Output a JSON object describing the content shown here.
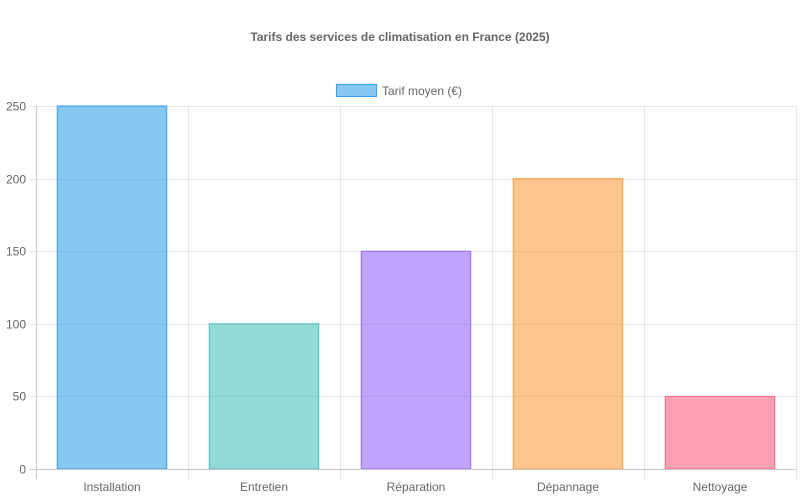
{
  "chart_data": {
    "type": "bar",
    "title": "Tarifs des services de climatisation en France (2025)",
    "categories": [
      "Installation",
      "Entretien",
      "Réparation",
      "Dépannage",
      "Nettoyage"
    ],
    "series": [
      {
        "name": "Tarif moyen (€)",
        "values": [
          250,
          100,
          150,
          200,
          50
        ]
      }
    ],
    "ylim": [
      0,
      250
    ],
    "yticks": [
      0,
      50,
      100,
      150,
      200,
      250
    ],
    "grid": true,
    "legend_position": "top",
    "bar_colors": [
      "#36A2EB",
      "#4BC0C0",
      "#9966FF",
      "#FF9F40",
      "#FF6384"
    ],
    "xlabel": "",
    "ylabel": ""
  }
}
